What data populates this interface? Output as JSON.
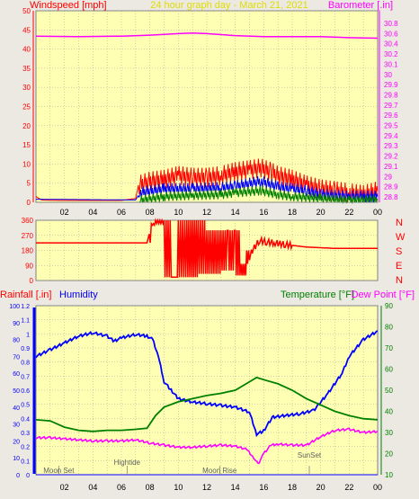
{
  "header": {
    "left": "Windspeed [mph]",
    "center": "24 hour graph day - March 21, 2021",
    "right": "Barometer [.in]"
  },
  "wind_dir_letters": [
    "N",
    "W",
    "S",
    "E",
    "N"
  ],
  "lower_header": {
    "rainfall": "Rainfall [.in]",
    "humidity": "Humidity",
    "temperature": "Temperature [°F]",
    "dewpoint": "Dew Point [°F]"
  },
  "events": [
    {
      "label": "Moon Set",
      "hour": 1.6
    },
    {
      "label": "Hightide",
      "hour": 6.4
    },
    {
      "label": "Moon Rise",
      "hour": 12.9
    },
    {
      "label": "SunSet",
      "hour": 19.2
    }
  ],
  "colors": {
    "plot_bg": "#ffffb4",
    "frame_bg": "#ece8e2",
    "grid": "#a0a0a0",
    "windspeed": "#ff0000",
    "gust": "#ff0000",
    "wind_avg": "#0000ff",
    "wind_low": "#008000",
    "barometer": "#ff00ff",
    "direction": "#ff0000",
    "humidity": "#0000ff",
    "temperature": "#008000",
    "dewpoint": "#ff00ff",
    "rainfall": "#0000ff"
  },
  "chart_data": [
    {
      "type": "line",
      "title": "24 hour graph day - March 21, 2021",
      "x_tick_labels": [
        "02",
        "04",
        "06",
        "08",
        "10",
        "12",
        "14",
        "16",
        "18",
        "20",
        "22",
        "00"
      ],
      "y_left": {
        "label": "Windspeed [mph]",
        "range": [
          0,
          50
        ],
        "ticks": [
          "0",
          "5",
          "10",
          "15",
          "20",
          "25",
          "30",
          "35",
          "40",
          "45",
          "50"
        ]
      },
      "y_right": {
        "label": "Barometer [.in]",
        "range": [
          28.8,
          30.8
        ],
        "ticks": [
          "28.8",
          "28.9",
          "29",
          "29.1",
          "29.2",
          "29.3",
          "29.4",
          "29.5",
          "29.6",
          "29.7",
          "29.8",
          "29.9",
          "30",
          "30.1",
          "30.2",
          "30.4",
          "30.6",
          "30.8"
        ]
      },
      "series": [
        {
          "name": "Barometer [.in]",
          "axis": "right",
          "points": [
            [
              0,
              30.55
            ],
            [
              3,
              30.54
            ],
            [
              6,
              30.55
            ],
            [
              8,
              30.57
            ],
            [
              10,
              30.6
            ],
            [
              11,
              30.61
            ],
            [
              12,
              30.6
            ],
            [
              14,
              30.56
            ],
            [
              16,
              30.54
            ],
            [
              18,
              30.54
            ],
            [
              20,
              30.54
            ],
            [
              22,
              30.52
            ],
            [
              24,
              30.51
            ]
          ]
        },
        {
          "name": "Windspeed [mph]",
          "axis": "left",
          "points": [
            [
              0,
              1.5
            ],
            [
              0.4,
              0.6
            ],
            [
              1.5,
              0.5
            ],
            [
              4,
              0.5
            ],
            [
              6,
              0.5
            ],
            [
              7,
              1
            ],
            [
              7.2,
              4.5
            ],
            [
              8,
              5.5
            ],
            [
              9,
              6
            ],
            [
              10,
              7
            ],
            [
              11,
              6.5
            ],
            [
              12,
              6.5
            ],
            [
              13,
              7
            ],
            [
              14,
              8
            ],
            [
              15,
              8.5
            ],
            [
              15.8,
              9
            ],
            [
              16.5,
              8
            ],
            [
              17,
              7
            ],
            [
              18,
              6
            ],
            [
              19,
              4.5
            ],
            [
              20,
              3.5
            ],
            [
              21,
              3
            ],
            [
              22,
              2.5
            ],
            [
              23,
              2
            ],
            [
              24,
              3
            ]
          ]
        },
        {
          "name": "Windspeed avg",
          "axis": "left",
          "points": [
            [
              0,
              0.8
            ],
            [
              7,
              0.6
            ],
            [
              7.3,
              2.5
            ],
            [
              9,
              3.5
            ],
            [
              11,
              3.5
            ],
            [
              13,
              3.8
            ],
            [
              14,
              4.2
            ],
            [
              15.8,
              5.5
            ],
            [
              17,
              4
            ],
            [
              18,
              3.5
            ],
            [
              19,
              3
            ],
            [
              20,
              2
            ],
            [
              22,
              1.5
            ],
            [
              23,
              1.5
            ],
            [
              24,
              1.5
            ]
          ]
        },
        {
          "name": "Windspeed low",
          "axis": "left",
          "points": [
            [
              7.3,
              0.5
            ],
            [
              9,
              1.5
            ],
            [
              11,
              1.8
            ],
            [
              13,
              2
            ],
            [
              14,
              2.5
            ],
            [
              15.8,
              3
            ],
            [
              17,
              2
            ],
            [
              18,
              1.5
            ],
            [
              20,
              1
            ],
            [
              22,
              0.5
            ],
            [
              24,
              0.8
            ]
          ]
        }
      ]
    },
    {
      "type": "line",
      "y_left": {
        "range": [
          0,
          360
        ],
        "ticks": [
          "0",
          "90",
          "180",
          "270",
          "360"
        ]
      },
      "x_tick_labels": [
        "02",
        "04",
        "06",
        "08",
        "10",
        "12",
        "14",
        "16",
        "18",
        "20",
        "22",
        "00"
      ],
      "series": [
        {
          "name": "Wind Direction",
          "points": [
            [
              0,
              225
            ],
            [
              7.8,
              225
            ],
            [
              8.1,
              330
            ],
            [
              8.4,
              340
            ],
            [
              9,
              360
            ],
            [
              9.5,
              20
            ],
            [
              10,
              20
            ],
            [
              10.6,
              360
            ],
            [
              11,
              20
            ],
            [
              11.4,
              360
            ],
            [
              12,
              40
            ],
            [
              13,
              300
            ],
            [
              13.5,
              60
            ],
            [
              14,
              300
            ],
            [
              14.4,
              30
            ],
            [
              14.8,
              100
            ],
            [
              15.2,
              180
            ],
            [
              15.7,
              240
            ],
            [
              16.2,
              230
            ],
            [
              16.8,
              225
            ],
            [
              17.5,
              215
            ],
            [
              18,
              210
            ],
            [
              19,
              200
            ],
            [
              21,
              192
            ],
            [
              24,
              192
            ]
          ]
        }
      ]
    },
    {
      "type": "line",
      "x_tick_labels": [
        "02",
        "04",
        "06",
        "08",
        "10",
        "12",
        "14",
        "16",
        "18",
        "20",
        "22",
        "00"
      ],
      "y_left": {
        "label": "Rainfall [.in]",
        "range": [
          0,
          1.2
        ],
        "ticks": [
          "0",
          "0.1",
          "0.2",
          "0.3",
          "0.4",
          "0.5",
          "0.6",
          "0.7",
          "0.8",
          "0.9",
          "1",
          "1.1",
          "1.2"
        ]
      },
      "y_humidity": {
        "label": "Humidity",
        "range": [
          0,
          100
        ],
        "ticks": [
          "0",
          "10",
          "20",
          "30",
          "40",
          "50",
          "60",
          "70",
          "80",
          "90",
          "100"
        ]
      },
      "y_right": {
        "label": "Temperature [°F]",
        "range": [
          10,
          90
        ],
        "ticks": [
          "10",
          "20",
          "30",
          "40",
          "50",
          "60",
          "70",
          "80",
          "90"
        ]
      },
      "series": [
        {
          "name": "Humidity",
          "axis": "humidity",
          "points": [
            [
              0,
              70
            ],
            [
              1,
              74
            ],
            [
              2,
              78
            ],
            [
              3,
              82
            ],
            [
              4,
              84
            ],
            [
              5,
              82
            ],
            [
              5.5,
              79
            ],
            [
              6,
              81
            ],
            [
              7,
              83
            ],
            [
              7.8,
              82
            ],
            [
              8.2,
              80
            ],
            [
              8.6,
              70
            ],
            [
              9,
              55
            ],
            [
              9.5,
              50
            ],
            [
              10,
              45
            ],
            [
              11,
              43
            ],
            [
              12,
              42
            ],
            [
              13,
              41
            ],
            [
              14,
              40
            ],
            [
              15,
              37
            ],
            [
              15.5,
              24
            ],
            [
              16,
              26
            ],
            [
              16.6,
              34
            ],
            [
              17.5,
              35
            ],
            [
              18.5,
              36
            ],
            [
              19.5,
              38
            ],
            [
              20.5,
              48
            ],
            [
              21.5,
              60
            ],
            [
              22,
              70
            ],
            [
              23,
              80
            ],
            [
              24,
              85
            ]
          ]
        },
        {
          "name": "Temperature [°F]",
          "axis": "right",
          "points": [
            [
              0,
              36
            ],
            [
              1,
              35.5
            ],
            [
              2,
              32.5
            ],
            [
              3,
              31
            ],
            [
              4,
              30.5
            ],
            [
              5,
              31
            ],
            [
              6,
              31
            ],
            [
              7,
              31.5
            ],
            [
              7.8,
              32
            ],
            [
              8.4,
              38
            ],
            [
              9,
              42
            ],
            [
              10,
              44.5
            ],
            [
              11,
              46
            ],
            [
              12,
              47.5
            ],
            [
              13,
              48.5
            ],
            [
              14,
              50
            ],
            [
              15,
              54
            ],
            [
              15.5,
              56
            ],
            [
              16,
              55
            ],
            [
              17,
              53
            ],
            [
              18,
              50
            ],
            [
              19,
              46
            ],
            [
              20,
              43
            ],
            [
              21,
              40
            ],
            [
              22,
              38
            ],
            [
              23,
              36.5
            ],
            [
              24,
              36
            ]
          ]
        },
        {
          "name": "Dew Point [°F]",
          "axis": "right",
          "points": [
            [
              0,
              27.5
            ],
            [
              1,
              27.5
            ],
            [
              2,
              27
            ],
            [
              3,
              26.5
            ],
            [
              4,
              26
            ],
            [
              5,
              26
            ],
            [
              6,
              26
            ],
            [
              7,
              26.5
            ],
            [
              8,
              25
            ],
            [
              9,
              24
            ],
            [
              10,
              23
            ],
            [
              11,
              23
            ],
            [
              12,
              23.5
            ],
            [
              13,
              24
            ],
            [
              14,
              23.5
            ],
            [
              14.8,
              22
            ],
            [
              15.3,
              18
            ],
            [
              15.6,
              15
            ],
            [
              16,
              20
            ],
            [
              16.5,
              24
            ],
            [
              17,
              24.5
            ],
            [
              18,
              24
            ],
            [
              19,
              24
            ],
            [
              20,
              28
            ],
            [
              21,
              31
            ],
            [
              22,
              31.5
            ],
            [
              23,
              30
            ],
            [
              24,
              30.5
            ]
          ]
        },
        {
          "name": "Rainfall [.in]",
          "axis": "left",
          "points": [
            [
              0,
              0
            ],
            [
              24,
              0
            ]
          ]
        }
      ]
    }
  ]
}
